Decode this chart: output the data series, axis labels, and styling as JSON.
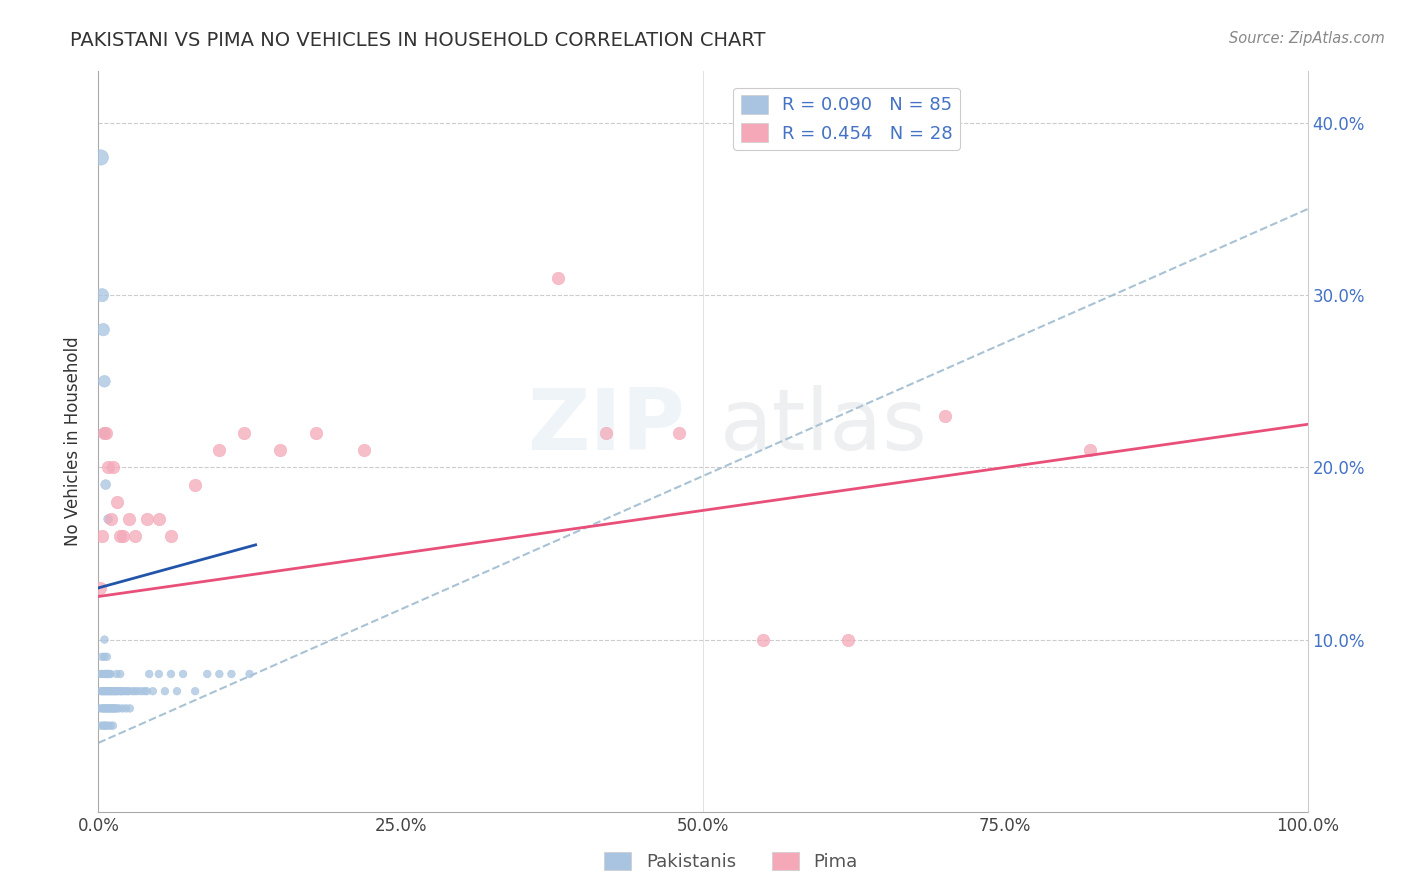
{
  "title": "PAKISTANI VS PIMA NO VEHICLES IN HOUSEHOLD CORRELATION CHART",
  "source": "Source: ZipAtlas.com",
  "ylabel": "No Vehicles in Household",
  "xlim": [
    0.0,
    1.0
  ],
  "ylim": [
    0.0,
    0.43
  ],
  "yticks": [
    0.1,
    0.2,
    0.3,
    0.4
  ],
  "ytick_labels": [
    "10.0%",
    "20.0%",
    "30.0%",
    "40.0%"
  ],
  "xticks": [
    0.0,
    0.25,
    0.5,
    0.75,
    1.0
  ],
  "xtick_labels": [
    "0.0%",
    "25.0%",
    "50.0%",
    "75.0%",
    "100.0%"
  ],
  "r_pakistani": 0.09,
  "n_pakistani": 85,
  "r_pima": 0.454,
  "n_pima": 28,
  "color_pakistani": "#a8c4e0",
  "color_pima": "#f4a8b8",
  "line_color_pakistani": "#2255aa",
  "line_color_pima": "#e8507a",
  "dashed_line_color": "#a0bcd0",
  "background_color": "#ffffff",
  "pakistani_x": [
    0.001,
    0.002,
    0.002,
    0.002,
    0.003,
    0.003,
    0.003,
    0.003,
    0.004,
    0.004,
    0.004,
    0.005,
    0.005,
    0.005,
    0.005,
    0.005,
    0.005,
    0.006,
    0.006,
    0.006,
    0.006,
    0.007,
    0.007,
    0.007,
    0.007,
    0.008,
    0.008,
    0.008,
    0.008,
    0.009,
    0.009,
    0.009,
    0.01,
    0.01,
    0.01,
    0.01,
    0.011,
    0.011,
    0.012,
    0.012,
    0.012,
    0.013,
    0.013,
    0.014,
    0.014,
    0.015,
    0.015,
    0.015,
    0.016,
    0.017,
    0.018,
    0.018,
    0.019,
    0.02,
    0.02,
    0.022,
    0.023,
    0.024,
    0.025,
    0.026,
    0.028,
    0.03,
    0.032,
    0.035,
    0.038,
    0.04,
    0.042,
    0.045,
    0.05,
    0.055,
    0.06,
    0.065,
    0.07,
    0.08,
    0.09,
    0.1,
    0.11,
    0.125,
    0.002,
    0.003,
    0.004,
    0.005,
    0.005,
    0.006,
    0.008
  ],
  "pakistani_y": [
    0.06,
    0.05,
    0.07,
    0.08,
    0.06,
    0.07,
    0.08,
    0.09,
    0.05,
    0.06,
    0.07,
    0.05,
    0.06,
    0.07,
    0.08,
    0.09,
    0.1,
    0.05,
    0.06,
    0.07,
    0.08,
    0.06,
    0.07,
    0.08,
    0.09,
    0.05,
    0.06,
    0.07,
    0.08,
    0.06,
    0.07,
    0.08,
    0.05,
    0.06,
    0.07,
    0.08,
    0.06,
    0.07,
    0.05,
    0.06,
    0.07,
    0.06,
    0.07,
    0.06,
    0.07,
    0.06,
    0.07,
    0.08,
    0.07,
    0.06,
    0.07,
    0.08,
    0.07,
    0.06,
    0.07,
    0.07,
    0.06,
    0.07,
    0.07,
    0.06,
    0.07,
    0.07,
    0.07,
    0.07,
    0.07,
    0.07,
    0.08,
    0.07,
    0.08,
    0.07,
    0.08,
    0.07,
    0.08,
    0.07,
    0.08,
    0.08,
    0.08,
    0.08,
    0.38,
    0.3,
    0.28,
    0.25,
    0.22,
    0.19,
    0.17
  ],
  "pakistani_size": [
    30,
    30,
    30,
    30,
    30,
    30,
    30,
    30,
    30,
    30,
    30,
    30,
    30,
    30,
    30,
    30,
    30,
    30,
    30,
    30,
    30,
    30,
    30,
    30,
    30,
    30,
    30,
    30,
    30,
    30,
    30,
    30,
    30,
    30,
    30,
    30,
    30,
    30,
    30,
    30,
    30,
    30,
    30,
    30,
    30,
    30,
    30,
    30,
    30,
    30,
    30,
    30,
    30,
    30,
    30,
    30,
    30,
    30,
    30,
    30,
    30,
    30,
    30,
    30,
    30,
    30,
    30,
    30,
    30,
    30,
    30,
    30,
    30,
    30,
    30,
    30,
    30,
    30,
    120,
    90,
    80,
    70,
    60,
    50,
    40
  ],
  "pima_x": [
    0.001,
    0.003,
    0.005,
    0.006,
    0.008,
    0.01,
    0.012,
    0.015,
    0.018,
    0.02,
    0.025,
    0.03,
    0.04,
    0.05,
    0.06,
    0.08,
    0.1,
    0.12,
    0.15,
    0.18,
    0.22,
    0.38,
    0.42,
    0.48,
    0.55,
    0.62,
    0.7,
    0.82
  ],
  "pima_y": [
    0.13,
    0.16,
    0.22,
    0.22,
    0.2,
    0.17,
    0.2,
    0.18,
    0.16,
    0.16,
    0.17,
    0.16,
    0.17,
    0.17,
    0.16,
    0.19,
    0.21,
    0.22,
    0.21,
    0.22,
    0.21,
    0.31,
    0.22,
    0.22,
    0.1,
    0.1,
    0.23,
    0.21
  ],
  "pak_line_x": [
    0.0,
    0.13
  ],
  "pak_line_y": [
    0.13,
    0.155
  ],
  "pima_line_x": [
    0.0,
    1.0
  ],
  "pima_line_y": [
    0.125,
    0.225
  ],
  "dash_line_x": [
    0.0,
    1.0
  ],
  "dash_line_y": [
    0.04,
    0.35
  ]
}
